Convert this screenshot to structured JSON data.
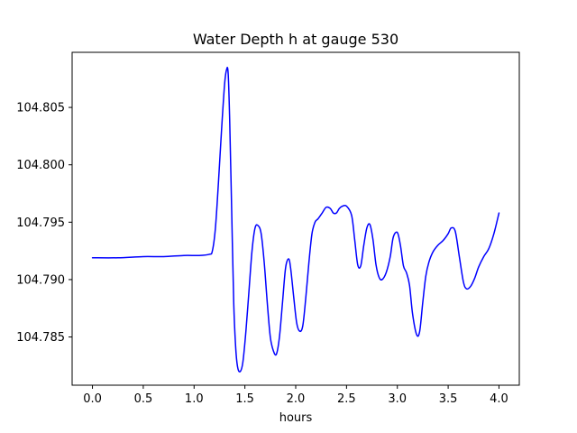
{
  "chart_data": {
    "type": "line",
    "title": "Water Depth h at gauge 530",
    "xlabel": "hours",
    "ylabel": "",
    "xlim": [
      -0.2,
      4.2
    ],
    "ylim": [
      104.7808,
      104.8098
    ],
    "xticks": [
      0.0,
      0.5,
      1.0,
      1.5,
      2.0,
      2.5,
      3.0,
      3.5,
      4.0
    ],
    "xtick_labels": [
      "0.0",
      "0.5",
      "1.0",
      "1.5",
      "2.0",
      "2.5",
      "3.0",
      "3.5",
      "4.0"
    ],
    "yticks": [
      104.785,
      104.79,
      104.795,
      104.8,
      104.805
    ],
    "ytick_labels": [
      "104.785",
      "104.790",
      "104.795",
      "104.800",
      "104.805"
    ],
    "grid": false,
    "series": [
      {
        "color": "#0000ff",
        "x": [
          0.0,
          0.25,
          0.5,
          0.7,
          0.9,
          1.05,
          1.15,
          1.18,
          1.21,
          1.24,
          1.27,
          1.3,
          1.32,
          1.335,
          1.35,
          1.37,
          1.39,
          1.41,
          1.43,
          1.455,
          1.48,
          1.51,
          1.54,
          1.57,
          1.6,
          1.63,
          1.66,
          1.69,
          1.72,
          1.75,
          1.78,
          1.81,
          1.84,
          1.87,
          1.9,
          1.93,
          1.95,
          1.98,
          2.01,
          2.04,
          2.07,
          2.1,
          2.13,
          2.16,
          2.19,
          2.22,
          2.26,
          2.3,
          2.34,
          2.37,
          2.4,
          2.43,
          2.46,
          2.5,
          2.55,
          2.58,
          2.61,
          2.64,
          2.67,
          2.7,
          2.73,
          2.76,
          2.79,
          2.82,
          2.85,
          2.89,
          2.93,
          2.96,
          3.0,
          3.03,
          3.06,
          3.09,
          3.12,
          3.15,
          3.19,
          3.22,
          3.25,
          3.28,
          3.31,
          3.35,
          3.4,
          3.45,
          3.5,
          3.53,
          3.57,
          3.61,
          3.65,
          3.68,
          3.72,
          3.76,
          3.8,
          3.85,
          3.9,
          3.95,
          4.0
        ],
        "y": [
          104.7919,
          104.7919,
          104.792,
          104.792,
          104.7921,
          104.7921,
          104.7922,
          104.7925,
          104.7945,
          104.7985,
          104.803,
          104.807,
          104.8083,
          104.808,
          104.804,
          104.796,
          104.788,
          104.784,
          104.7823,
          104.782,
          104.7828,
          104.7855,
          104.789,
          104.7925,
          104.7945,
          104.7947,
          104.794,
          104.7915,
          104.788,
          104.785,
          104.7838,
          104.7835,
          104.785,
          104.788,
          104.791,
          104.7918,
          104.791,
          104.7885,
          104.7862,
          104.7855,
          104.786,
          104.7885,
          104.7915,
          104.794,
          104.795,
          104.7953,
          104.7958,
          104.7963,
          104.7962,
          104.7958,
          104.7958,
          104.7962,
          104.7964,
          104.7964,
          104.7956,
          104.7935,
          104.7913,
          104.7912,
          104.793,
          104.7945,
          104.7948,
          104.7935,
          104.7913,
          104.7902,
          104.79,
          104.7906,
          104.792,
          104.7937,
          104.7941,
          104.793,
          104.7912,
          104.7906,
          104.7895,
          104.787,
          104.7852,
          104.7855,
          104.788,
          104.7903,
          104.7915,
          104.7924,
          104.793,
          104.7934,
          104.794,
          104.7945,
          104.7942,
          104.792,
          104.7898,
          104.7892,
          104.7894,
          104.7901,
          104.7911,
          104.792,
          104.7927,
          104.794,
          104.7958
        ]
      }
    ]
  }
}
